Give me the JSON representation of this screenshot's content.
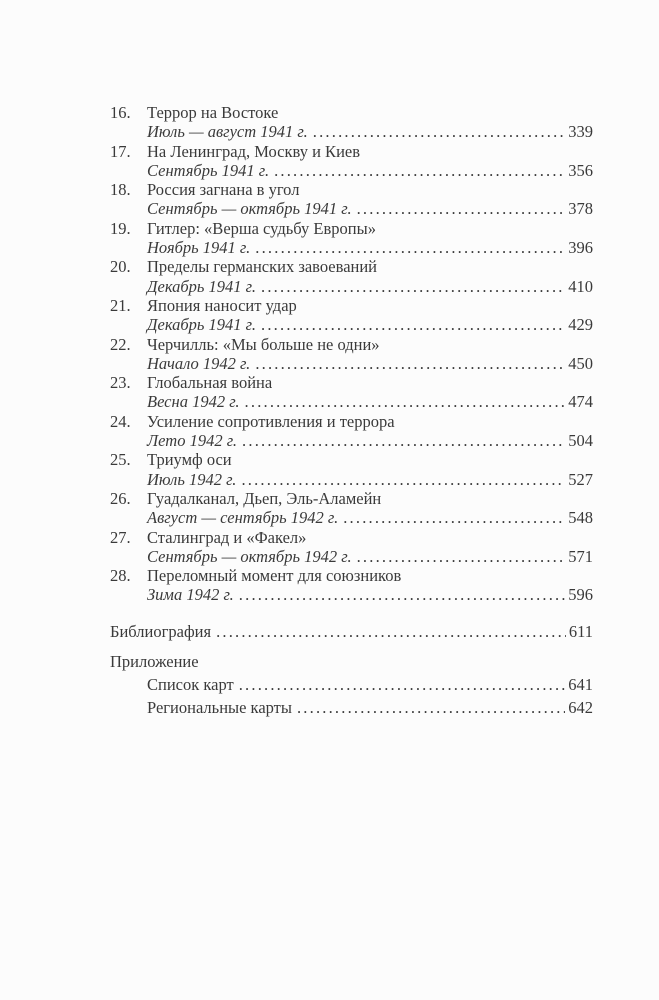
{
  "page": {
    "background": "#fcfcfc",
    "text_color": "#3a3a3a"
  },
  "toc": {
    "entries": [
      {
        "number": "16.",
        "title": "Террор на Востоке",
        "date": "Июль — август 1941 г.",
        "page": "339"
      },
      {
        "number": "17.",
        "title": "На Ленинград, Москву и Киев",
        "date": "Сентябрь 1941 г.",
        "page": "356"
      },
      {
        "number": "18.",
        "title": "Россия загнана в угол",
        "date": "Сентябрь — октябрь 1941 г.",
        "page": "378"
      },
      {
        "number": "19.",
        "title": "Гитлер: «Верша судьбу Европы»",
        "date": "Ноябрь 1941 г.",
        "page": "396"
      },
      {
        "number": "20.",
        "title": "Пределы германских завоеваний",
        "date": "Декабрь 1941 г.",
        "page": "410"
      },
      {
        "number": "21.",
        "title": "Япония наносит удар",
        "date": "Декабрь 1941 г.",
        "page": "429"
      },
      {
        "number": "22.",
        "title": "Черчилль: «Мы больше не одни»",
        "date": "Начало 1942 г.",
        "page": "450"
      },
      {
        "number": "23.",
        "title": "Глобальная война",
        "date": "Весна 1942 г.",
        "page": "474"
      },
      {
        "number": "24.",
        "title": "Усиление сопротивления и террора",
        "date": "Лето 1942 г.",
        "page": "504"
      },
      {
        "number": "25.",
        "title": "Триумф оси",
        "date": "Июль 1942 г.",
        "page": "527"
      },
      {
        "number": "26.",
        "title": "Гуадалканал, Дьеп, Эль-Аламейн",
        "date": "Август — сентябрь 1942 г.",
        "page": "548"
      },
      {
        "number": "27.",
        "title": "Сталинград и «Факел»",
        "date": "Сентябрь — октябрь 1942 г.",
        "page": "571"
      },
      {
        "number": "28.",
        "title": "Переломный момент для союзников",
        "date": "Зима 1942 г.",
        "page": "596"
      }
    ],
    "bibliography": {
      "label": "Библиография",
      "page": "611"
    },
    "appendix": {
      "label": "Приложение",
      "items": [
        {
          "label": "Список карт",
          "page": "641"
        },
        {
          "label": "Региональные карты",
          "page": "642"
        }
      ]
    }
  }
}
